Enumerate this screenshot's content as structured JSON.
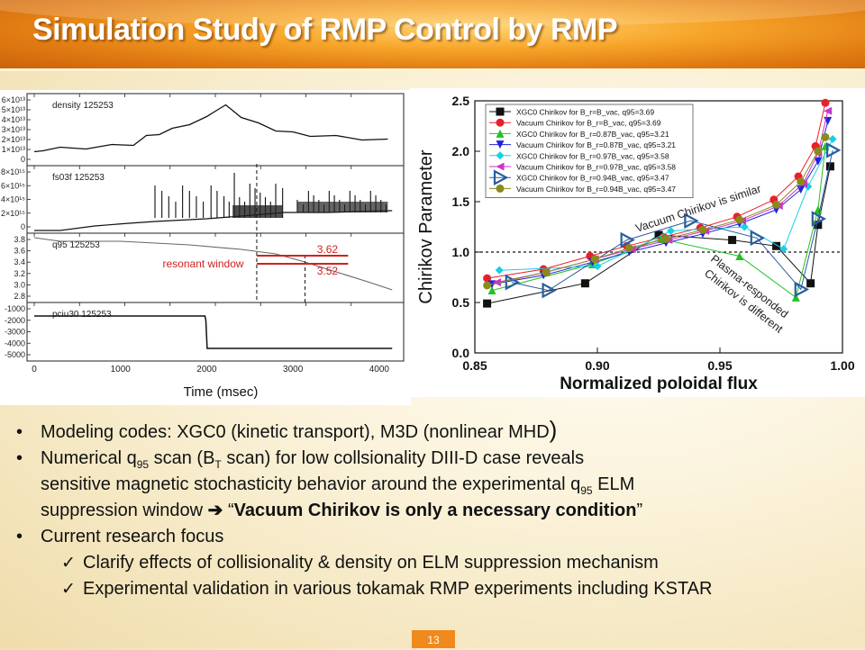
{
  "slide": {
    "title": "Simulation Study of RMP Control by RMP",
    "page_number": "13"
  },
  "left_figure": {
    "panel_labels": [
      "density  125253",
      "fs03f  125253",
      "q95  125253",
      "pciu30  125253"
    ],
    "density_yticks": [
      "6×10¹³",
      "5×10¹³",
      "4×10¹³",
      "3×10¹³",
      "2×10¹³",
      "1×10¹³",
      "0"
    ],
    "fs_yticks": [
      "8×10¹⁵",
      "6×10¹⁵",
      "4×10¹⁵",
      "2×10¹⁵",
      "0"
    ],
    "q95_yticks": [
      "3.8",
      "3.6",
      "3.4",
      "3.2",
      "3.0",
      "2.8"
    ],
    "pciu_yticks": [
      "-1000",
      "-2000",
      "-3000",
      "-4000",
      "-5000"
    ],
    "xticks": [
      "0",
      "1000",
      "2000",
      "3000",
      "4000"
    ],
    "resonant_label": "resonant window",
    "upper_q": "3.62",
    "lower_q": "3.52",
    "xlabel": "Time (msec)"
  },
  "chart_data": {
    "type": "line",
    "title": "",
    "xlabel": "Normalized poloidal flux",
    "ylabel": "Chirikov Parameter",
    "xlim": [
      0.85,
      1.0
    ],
    "ylim": [
      0.0,
      2.5
    ],
    "xticks": [
      "0.85",
      "0.90",
      "0.95",
      "1.00"
    ],
    "yticks": [
      "0.0",
      "0.5",
      "1.0",
      "1.5",
      "2.0",
      "2.5"
    ],
    "reference_line": 1.0,
    "legend_position": "top-left",
    "series": [
      {
        "name": "XGC0 Chirikov for B_r=B_vac, q95=3.69",
        "color": "#111111",
        "marker": "square",
        "x": [
          0.855,
          0.895,
          0.925,
          0.955,
          0.973,
          0.987,
          0.99,
          0.995
        ],
        "y": [
          0.49,
          0.69,
          1.17,
          1.12,
          1.06,
          0.69,
          1.27,
          1.85
        ]
      },
      {
        "name": "Vacuum Chirikov for B_r=B_vac, q95=3.69",
        "color": "#e8202a",
        "marker": "circle",
        "x": [
          0.855,
          0.878,
          0.897,
          0.912,
          0.927,
          0.942,
          0.957,
          0.972,
          0.982,
          0.989,
          0.993
        ],
        "y": [
          0.74,
          0.83,
          0.96,
          1.06,
          1.15,
          1.24,
          1.35,
          1.52,
          1.75,
          2.05,
          2.48
        ]
      },
      {
        "name": "XGC0 Chirikov for B_r=0.87B_vac, q95=3.21",
        "color": "#22c222",
        "marker": "triangle-up",
        "x": [
          0.857,
          0.898,
          0.926,
          0.958,
          0.981,
          0.99,
          0.993
        ],
        "y": [
          0.62,
          0.88,
          1.13,
          0.96,
          0.55,
          1.42,
          2.05
        ]
      },
      {
        "name": "Vacuum Chirikov for B_r=0.87B_vac, q95=3.21",
        "color": "#2222dd",
        "marker": "triangle-down",
        "x": [
          0.857,
          0.878,
          0.898,
          0.913,
          0.928,
          0.943,
          0.958,
          0.973,
          0.983,
          0.99,
          0.994
        ],
        "y": [
          0.68,
          0.77,
          0.9,
          1.0,
          1.09,
          1.18,
          1.28,
          1.42,
          1.62,
          1.9,
          2.3
        ]
      },
      {
        "name": "XGC0 Chirikov for B_r=0.97B_vac, q95=3.58",
        "color": "#18d0e6",
        "marker": "diamond",
        "x": [
          0.86,
          0.9,
          0.93,
          0.96,
          0.976,
          0.986,
          0.996
        ],
        "y": [
          0.82,
          0.86,
          1.21,
          1.25,
          1.03,
          1.65,
          2.12
        ]
      },
      {
        "name": "Vacuum Chirikov for B_r=0.97B_vac, q95=3.58",
        "color": "#cc33cc",
        "marker": "triangle-left",
        "x": [
          0.859,
          0.879,
          0.899,
          0.914,
          0.929,
          0.944,
          0.959,
          0.974,
          0.984,
          0.99,
          0.994
        ],
        "y": [
          0.7,
          0.8,
          0.93,
          1.03,
          1.12,
          1.21,
          1.31,
          1.46,
          1.68,
          1.98,
          2.4
        ]
      },
      {
        "name": "XGC0 Chirikov for B_r=0.94B_vac, q95=3.47",
        "color": "#2a5d9e",
        "marker": "triangle-right",
        "x": [
          0.865,
          0.88,
          0.912,
          0.938,
          0.965,
          0.983,
          0.99,
          0.996
        ],
        "y": [
          0.7,
          0.62,
          1.12,
          1.31,
          1.14,
          0.63,
          1.33,
          2.01
        ]
      },
      {
        "name": "Vacuum Chirikov for B_r=0.94B_vac, q95=3.47",
        "color": "#8a8a1c",
        "marker": "circle",
        "x": [
          0.855,
          0.879,
          0.899,
          0.913,
          0.928,
          0.943,
          0.958,
          0.973,
          0.983,
          0.99,
          0.993
        ],
        "y": [
          0.67,
          0.8,
          0.93,
          1.04,
          1.13,
          1.22,
          1.32,
          1.47,
          1.7,
          2.0,
          2.14
        ]
      }
    ],
    "annotations": [
      "Vacuum Chirikov is similar",
      "Plasma-responded",
      "Chirikov is different"
    ]
  },
  "bullets": {
    "b1": {
      "text": "Modeling codes: XGC0 (kinetic transport), M3D (nonlinear MHD",
      "close": ")"
    },
    "b2": {
      "a": "Numerical q",
      "a_sub": "95",
      "b": " scan (B",
      "b_sub": "T",
      "c": " scan) for low collsionality DIII-D case reveals",
      "line2a": "sensitive magnetic stochasticity behavior around the experimental q",
      "line2_sub": "95",
      "line2b": " ELM",
      "line3a": "suppression window ",
      "arrow": "➔",
      "quote_open": " “",
      "bold": "Vacuum Chirikov is only a necessary condition",
      "quote_close": "”"
    },
    "b3": {
      "text": "Current research focus"
    },
    "s1": {
      "text": "Clarify effects of collisionality & density on ELM suppression mechanism"
    },
    "s2": {
      "text": "Experimental validation in various tokamak RMP experiments including KSTAR"
    },
    "bullet_glyph": "•",
    "check_glyph": "✓"
  }
}
